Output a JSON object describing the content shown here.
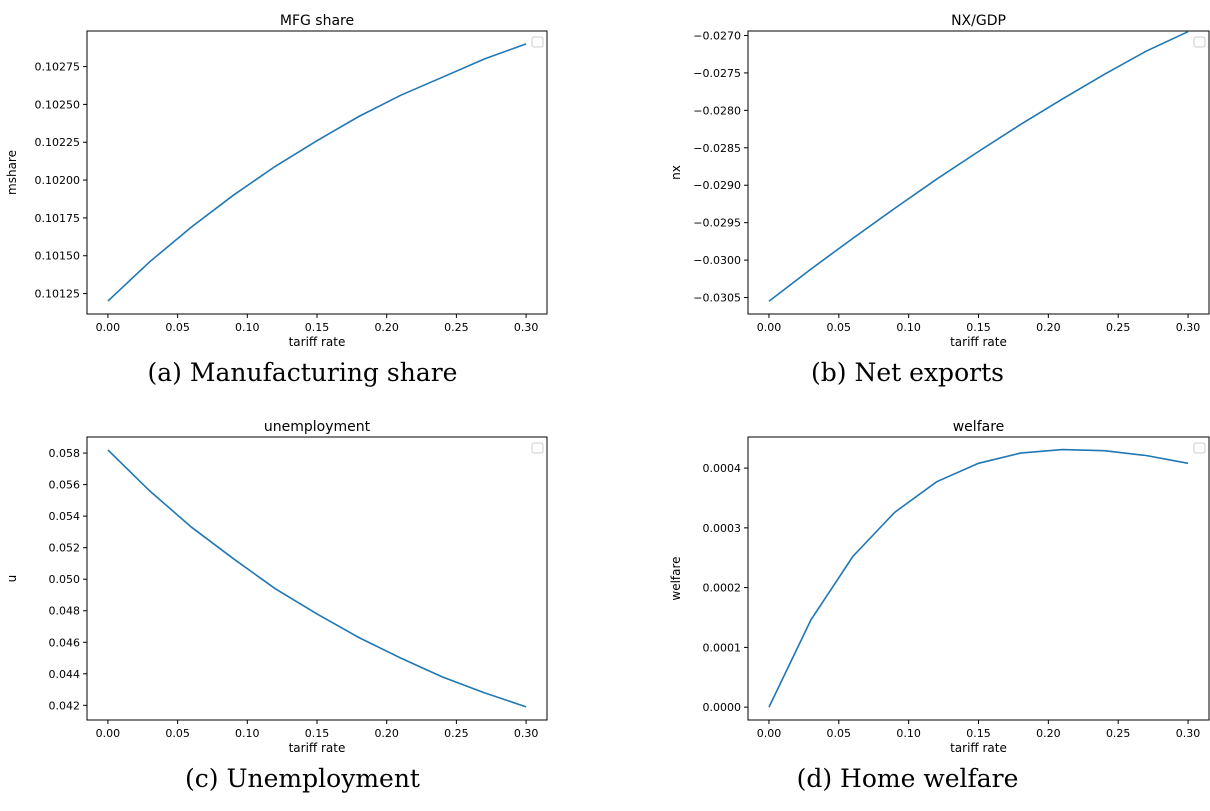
{
  "chart_data": [
    {
      "type": "line",
      "title": "MFG share",
      "xlabel": "tariff rate",
      "ylabel": "mshare",
      "caption": "(a) Manufacturing share",
      "x": [
        0.0,
        0.03,
        0.06,
        0.09,
        0.12,
        0.15,
        0.18,
        0.21,
        0.24,
        0.27,
        0.3
      ],
      "series": [
        {
          "values": [
            0.1012,
            0.10146,
            0.10169,
            0.1019,
            0.10209,
            0.10226,
            0.10242,
            0.10256,
            0.10268,
            0.1028,
            0.1029
          ]
        }
      ],
      "xlim": [
        -0.015,
        0.315
      ],
      "ylim": [
        0.101115,
        0.102985
      ],
      "xticks": [
        0.0,
        0.05,
        0.1,
        0.15,
        0.2,
        0.25,
        0.3
      ],
      "xtick_labels": [
        "0.00",
        "0.05",
        "0.10",
        "0.15",
        "0.20",
        "0.25",
        "0.30"
      ],
      "yticks": [
        0.10125,
        0.1015,
        0.10175,
        0.102,
        0.10225,
        0.1025,
        0.10275
      ],
      "ytick_labels": [
        "0.10125",
        "0.10150",
        "0.10175",
        "0.10200",
        "0.10225",
        "0.10250",
        "0.10275"
      ],
      "legend_placement": "upper right",
      "grid": false,
      "line_color": "#1f77b4"
    },
    {
      "type": "line",
      "title": "NX/GDP",
      "xlabel": "tariff rate",
      "ylabel": "nx",
      "caption": "(b) Net exports",
      "x": [
        0.0,
        0.03,
        0.06,
        0.09,
        0.12,
        0.15,
        0.18,
        0.21,
        0.24,
        0.27,
        0.3
      ],
      "series": [
        {
          "values": [
            -0.03055,
            -0.03012,
            -0.02971,
            -0.02931,
            -0.02892,
            -0.02855,
            -0.02819,
            -0.02785,
            -0.02752,
            -0.02721,
            -0.02695
          ]
        }
      ],
      "xlim": [
        -0.015,
        0.315
      ],
      "ylim": [
        -0.03072,
        -0.02694
      ],
      "xticks": [
        0.0,
        0.05,
        0.1,
        0.15,
        0.2,
        0.25,
        0.3
      ],
      "xtick_labels": [
        "0.00",
        "0.05",
        "0.10",
        "0.15",
        "0.20",
        "0.25",
        "0.30"
      ],
      "yticks": [
        -0.027,
        -0.0275,
        -0.028,
        -0.0285,
        -0.029,
        -0.0295,
        -0.03,
        -0.0305
      ],
      "ytick_labels": [
        "−0.0270",
        "−0.0275",
        "−0.0280",
        "−0.0285",
        "−0.0290",
        "−0.0295",
        "−0.0300",
        "−0.0305"
      ],
      "legend_placement": "upper right",
      "grid": false,
      "line_color": "#1f77b4"
    },
    {
      "type": "line",
      "title": "unemployment",
      "xlabel": "tariff rate",
      "ylabel": "u",
      "caption": "(c) Unemployment",
      "x": [
        0.0,
        0.03,
        0.06,
        0.09,
        0.12,
        0.15,
        0.18,
        0.21,
        0.24,
        0.27,
        0.3
      ],
      "series": [
        {
          "values": [
            0.0582,
            0.0556,
            0.0533,
            0.0513,
            0.0494,
            0.0478,
            0.0463,
            0.045,
            0.0438,
            0.0428,
            0.0419
          ]
        }
      ],
      "xlim": [
        -0.015,
        0.315
      ],
      "ylim": [
        0.04107,
        0.05902
      ],
      "xticks": [
        0.0,
        0.05,
        0.1,
        0.15,
        0.2,
        0.25,
        0.3
      ],
      "xtick_labels": [
        "0.00",
        "0.05",
        "0.10",
        "0.15",
        "0.20",
        "0.25",
        "0.30"
      ],
      "yticks": [
        0.042,
        0.044,
        0.046,
        0.048,
        0.05,
        0.052,
        0.054,
        0.056,
        0.058
      ],
      "ytick_labels": [
        "0.042",
        "0.044",
        "0.046",
        "0.048",
        "0.050",
        "0.052",
        "0.054",
        "0.056",
        "0.058"
      ],
      "legend_placement": "upper right",
      "grid": false,
      "line_color": "#1f77b4"
    },
    {
      "type": "line",
      "title": "welfare",
      "xlabel": "tariff rate",
      "ylabel": "welfare",
      "caption": "(d) Home welfare",
      "x": [
        0.0,
        0.03,
        0.06,
        0.09,
        0.12,
        0.15,
        0.18,
        0.21,
        0.24,
        0.27,
        0.3
      ],
      "series": [
        {
          "values": [
            0.0,
            0.000146,
            0.000252,
            0.000326,
            0.000377,
            0.000408,
            0.000425,
            0.000431,
            0.000429,
            0.000421,
            0.000408
          ]
        }
      ],
      "xlim": [
        -0.015,
        0.315
      ],
      "ylim": [
        -2.15e-05,
        0.000452
      ],
      "xticks": [
        0.0,
        0.05,
        0.1,
        0.15,
        0.2,
        0.25,
        0.3
      ],
      "xtick_labels": [
        "0.00",
        "0.05",
        "0.10",
        "0.15",
        "0.20",
        "0.25",
        "0.30"
      ],
      "yticks": [
        0.0,
        0.0001,
        0.0002,
        0.0003,
        0.0004
      ],
      "ytick_labels": [
        "0.0000",
        "0.0001",
        "0.0002",
        "0.0003",
        "0.0004"
      ],
      "legend_placement": "upper right",
      "grid": false,
      "line_color": "#1f77b4"
    }
  ]
}
